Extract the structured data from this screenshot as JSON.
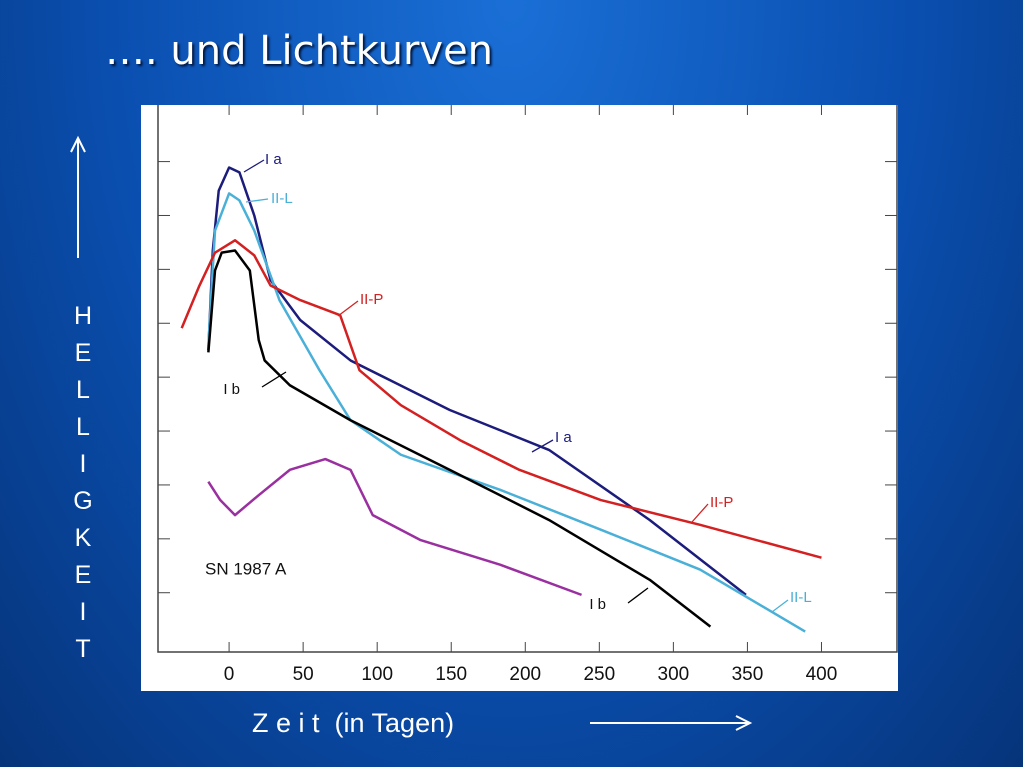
{
  "chart_data": {
    "type": "line",
    "title": "…. und Lichtkurven",
    "xlabel": "Z e i t  (in Tagen)",
    "ylabel": "HELLIGKEIT",
    "xlim": [
      -48,
      451
    ],
    "xticks": [
      0,
      50,
      100,
      150,
      200,
      250,
      300,
      350,
      400
    ],
    "ylim": [
      -0.1,
      10.05
    ],
    "yticks": [
      1,
      2,
      3,
      4,
      5,
      6,
      7,
      8,
      9
    ],
    "series": [
      {
        "name": "Ia",
        "color": "#1c1c7c",
        "x": [
          -14,
          -11,
          -7,
          0,
          7,
          17,
          28,
          48,
          82,
          149,
          216,
          284,
          349
        ],
        "values": [
          5.5,
          7.35,
          8.46,
          8.89,
          8.8,
          8.0,
          6.8,
          6.06,
          5.31,
          4.39,
          3.65,
          2.35,
          0.96
        ]
      },
      {
        "name": "II-L",
        "color": "#4ab0d8",
        "x": [
          -14,
          -9.5,
          0,
          7,
          17,
          34,
          61,
          82,
          116,
          183,
          251,
          318,
          389
        ],
        "values": [
          5.59,
          7.72,
          8.41,
          8.28,
          7.72,
          6.43,
          5.13,
          4.2,
          3.56,
          2.91,
          2.17,
          1.43,
          0.28
        ]
      },
      {
        "name": "II-P",
        "color": "#d42020",
        "x": [
          -32,
          -20,
          -9.5,
          4,
          17,
          28,
          48,
          75,
          88,
          116,
          156,
          196,
          251,
          318,
          400
        ],
        "values": [
          5.91,
          6.7,
          7.31,
          7.54,
          7.26,
          6.7,
          6.43,
          6.15,
          5.13,
          4.48,
          3.83,
          3.28,
          2.72,
          2.26,
          1.65
        ]
      },
      {
        "name": "Ib",
        "color": "#000000",
        "x": [
          -14,
          -9.5,
          -5,
          4,
          14,
          20,
          24,
          41,
          82,
          149,
          216,
          284,
          325
        ],
        "values": [
          5.46,
          6.98,
          7.31,
          7.35,
          6.98,
          5.69,
          5.31,
          4.85,
          4.2,
          3.28,
          2.35,
          1.24,
          0.37
        ]
      },
      {
        "name": "SN 1987 A",
        "color": "#9a30a0",
        "x": [
          -14,
          -6,
          4,
          20,
          41,
          65,
          82,
          97,
          129,
          183,
          238
        ],
        "values": [
          3.06,
          2.72,
          2.44,
          2.81,
          3.28,
          3.48,
          3.28,
          2.44,
          1.98,
          1.52,
          0.96
        ]
      }
    ],
    "annotations": [
      "I a",
      "II-L",
      "II-P",
      "I b",
      "I a",
      "II-P",
      "II-L",
      "I b",
      "SN 1987 A"
    ]
  }
}
